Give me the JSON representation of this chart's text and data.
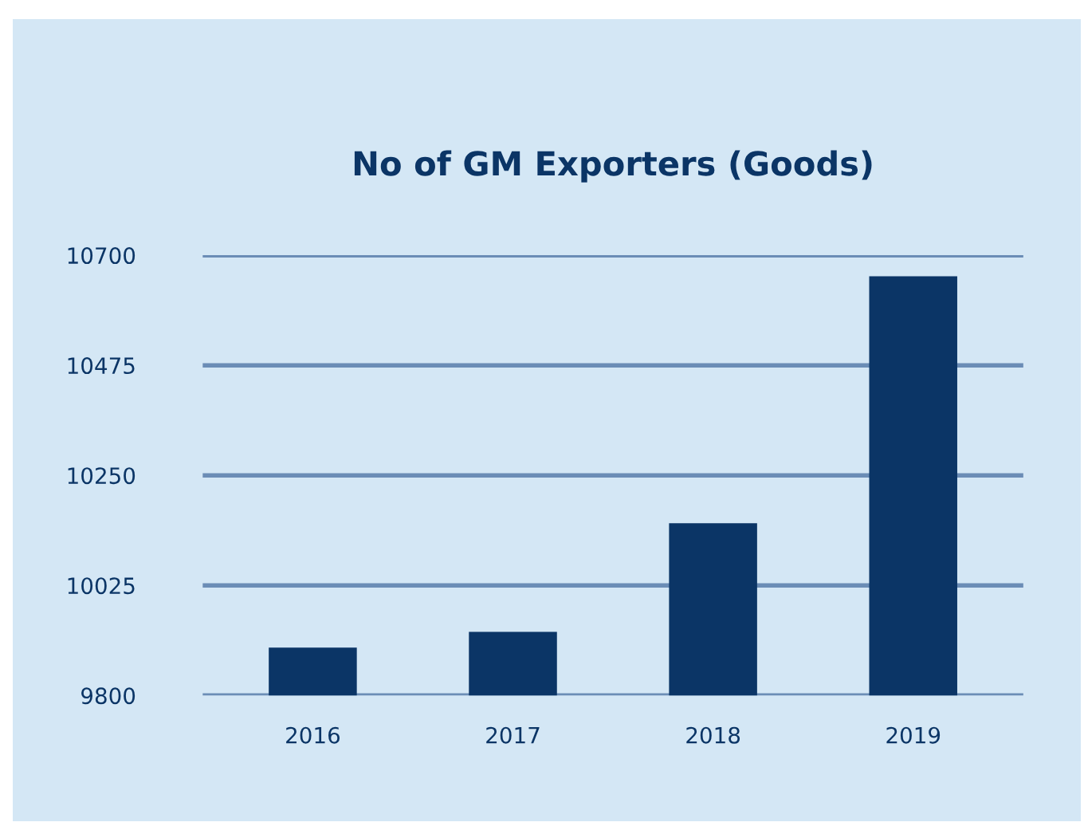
{
  "chart_data": {
    "type": "bar",
    "title": "No of GM Exporters (Goods)",
    "categories": [
      "2016",
      "2017",
      "2018",
      "2019"
    ],
    "values": [
      9898,
      9930,
      10152,
      10657
    ],
    "color": "#0b3566",
    "ylim": [
      9800,
      10700
    ],
    "yticks": [
      9800,
      10025,
      10250,
      10475,
      10700
    ],
    "grid": "y"
  }
}
